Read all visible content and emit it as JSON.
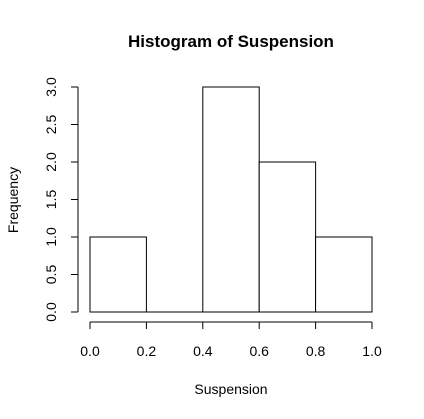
{
  "chart_data": {
    "type": "bar",
    "title": "Histogram of Suspension",
    "xlabel": "Suspension",
    "ylabel": "Frequency",
    "bins": [
      {
        "start": 0.0,
        "end": 0.2,
        "count": 1
      },
      {
        "start": 0.2,
        "end": 0.4,
        "count": 0
      },
      {
        "start": 0.4,
        "end": 0.6,
        "count": 3
      },
      {
        "start": 0.6,
        "end": 0.8,
        "count": 2
      },
      {
        "start": 0.8,
        "end": 1.0,
        "count": 1
      }
    ],
    "xlim": [
      0.0,
      1.0
    ],
    "ylim": [
      0.0,
      3.0
    ],
    "x_ticks": [
      "0.0",
      "0.2",
      "0.4",
      "0.6",
      "0.8",
      "1.0"
    ],
    "y_ticks": [
      "0.0",
      "0.5",
      "1.0",
      "1.5",
      "2.0",
      "2.5",
      "3.0"
    ],
    "grid": false
  }
}
